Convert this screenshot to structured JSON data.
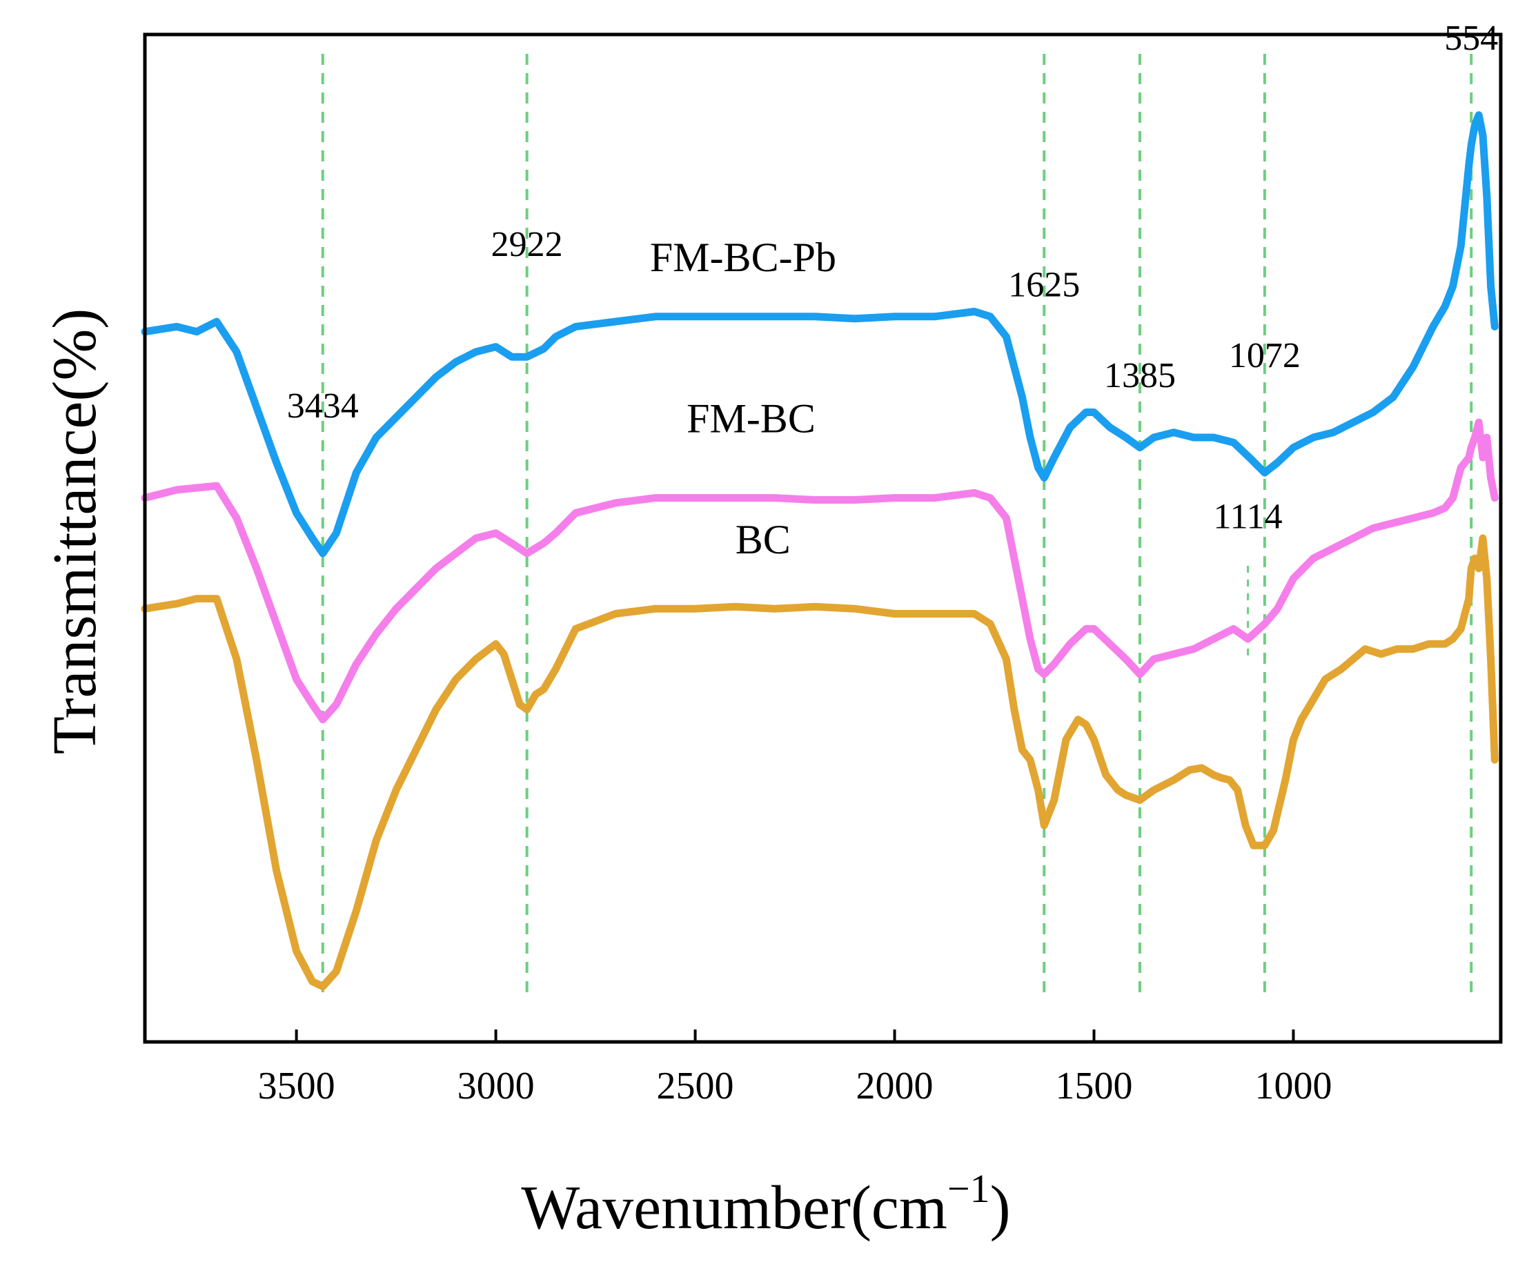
{
  "chart_data": {
    "type": "line",
    "title": "",
    "xlabel": "Wavenumber(cm",
    "xlabel_sup": "−1",
    "xlabel_close": ")",
    "ylabel": "Transmittance(%)",
    "xlim": [
      3880,
      480
    ],
    "ylim": [
      0,
      1
    ],
    "x_reversed": true,
    "x_ticks": [
      3500,
      3000,
      2500,
      2000,
      1500,
      1000
    ],
    "y_ticks": [],
    "grid": false,
    "colors": {
      "FM-BC-Pb": "#1a9ef0",
      "FM-BC": "#f57fea",
      "BC": "#e2a531",
      "guide": "#6ccf7f"
    },
    "guide_lines": [
      3434,
      2922,
      1625,
      1385,
      1072,
      554
    ],
    "guide_line_1114": 1114,
    "peak_labels": [
      {
        "text": "3434",
        "x": 3434,
        "y": 0.62
      },
      {
        "text": "2922",
        "x": 2922,
        "y": 0.78
      },
      {
        "text": "1625",
        "x": 1625,
        "y": 0.74
      },
      {
        "text": "1385",
        "x": 1385,
        "y": 0.65
      },
      {
        "text": "1072",
        "x": 1072,
        "y": 0.67
      },
      {
        "text": "1114",
        "x": 1114,
        "y": 0.51
      },
      {
        "text": "554",
        "x": 554,
        "y": 0.985
      }
    ],
    "series_labels": [
      {
        "text": "FM-BC-Pb",
        "x": 2380,
        "y": 0.765
      },
      {
        "text": "FM-BC",
        "x": 2360,
        "y": 0.605
      },
      {
        "text": "BC",
        "x": 2330,
        "y": 0.485
      }
    ],
    "series": [
      {
        "name": "FM-BC-Pb",
        "x": [
          3880,
          3800,
          3750,
          3700,
          3650,
          3600,
          3550,
          3500,
          3460,
          3434,
          3400,
          3350,
          3300,
          3250,
          3200,
          3150,
          3100,
          3050,
          3000,
          2960,
          2922,
          2880,
          2850,
          2800,
          2700,
          2600,
          2500,
          2400,
          2300,
          2200,
          2100,
          2000,
          1900,
          1800,
          1760,
          1720,
          1700,
          1680,
          1660,
          1640,
          1625,
          1600,
          1560,
          1520,
          1500,
          1460,
          1420,
          1385,
          1350,
          1300,
          1250,
          1200,
          1150,
          1110,
          1072,
          1040,
          1000,
          950,
          900,
          850,
          800,
          750,
          700,
          650,
          620,
          600,
          580,
          570,
          560,
          554,
          545,
          535,
          525,
          515,
          505,
          495
        ],
        "y": [
          0.705,
          0.71,
          0.705,
          0.715,
          0.685,
          0.63,
          0.575,
          0.525,
          0.5,
          0.485,
          0.505,
          0.565,
          0.6,
          0.62,
          0.64,
          0.66,
          0.675,
          0.685,
          0.69,
          0.68,
          0.68,
          0.688,
          0.7,
          0.71,
          0.715,
          0.72,
          0.72,
          0.72,
          0.72,
          0.72,
          0.718,
          0.72,
          0.72,
          0.725,
          0.72,
          0.7,
          0.67,
          0.64,
          0.6,
          0.57,
          0.56,
          0.58,
          0.61,
          0.625,
          0.625,
          0.61,
          0.6,
          0.59,
          0.6,
          0.605,
          0.6,
          0.6,
          0.595,
          0.58,
          0.565,
          0.575,
          0.59,
          0.6,
          0.605,
          0.615,
          0.625,
          0.64,
          0.67,
          0.71,
          0.73,
          0.75,
          0.79,
          0.83,
          0.87,
          0.89,
          0.91,
          0.92,
          0.9,
          0.84,
          0.75,
          0.71
        ]
      },
      {
        "name": "FM-BC",
        "x": [
          3880,
          3800,
          3750,
          3700,
          3650,
          3600,
          3550,
          3500,
          3460,
          3434,
          3400,
          3350,
          3300,
          3250,
          3200,
          3150,
          3100,
          3050,
          3000,
          2960,
          2922,
          2880,
          2850,
          2800,
          2700,
          2600,
          2500,
          2400,
          2300,
          2200,
          2100,
          2000,
          1900,
          1800,
          1760,
          1720,
          1700,
          1680,
          1660,
          1640,
          1625,
          1600,
          1560,
          1520,
          1500,
          1460,
          1420,
          1385,
          1350,
          1300,
          1250,
          1200,
          1150,
          1114,
          1100,
          1072,
          1040,
          1000,
          950,
          900,
          850,
          800,
          750,
          700,
          650,
          620,
          600,
          580,
          560,
          554,
          545,
          535,
          525,
          515,
          505,
          495
        ],
        "y": [
          0.54,
          0.548,
          0.55,
          0.552,
          0.52,
          0.47,
          0.415,
          0.36,
          0.335,
          0.32,
          0.335,
          0.375,
          0.405,
          0.43,
          0.45,
          0.47,
          0.485,
          0.5,
          0.505,
          0.495,
          0.485,
          0.495,
          0.505,
          0.525,
          0.535,
          0.54,
          0.54,
          0.54,
          0.54,
          0.538,
          0.538,
          0.54,
          0.54,
          0.545,
          0.54,
          0.52,
          0.48,
          0.44,
          0.4,
          0.37,
          0.365,
          0.375,
          0.395,
          0.41,
          0.41,
          0.395,
          0.38,
          0.365,
          0.38,
          0.385,
          0.39,
          0.4,
          0.41,
          0.4,
          0.405,
          0.415,
          0.43,
          0.46,
          0.48,
          0.49,
          0.5,
          0.51,
          0.515,
          0.52,
          0.525,
          0.53,
          0.54,
          0.57,
          0.58,
          0.59,
          0.6,
          0.615,
          0.58,
          0.6,
          0.56,
          0.54
        ]
      },
      {
        "name": "BC",
        "x": [
          3880,
          3800,
          3750,
          3700,
          3650,
          3600,
          3550,
          3500,
          3460,
          3434,
          3400,
          3350,
          3300,
          3250,
          3200,
          3150,
          3100,
          3050,
          3000,
          2980,
          2960,
          2940,
          2922,
          2900,
          2880,
          2850,
          2800,
          2700,
          2600,
          2500,
          2400,
          2300,
          2200,
          2100,
          2000,
          1900,
          1800,
          1760,
          1720,
          1700,
          1680,
          1660,
          1640,
          1625,
          1600,
          1570,
          1540,
          1520,
          1500,
          1470,
          1440,
          1420,
          1385,
          1350,
          1300,
          1260,
          1230,
          1200,
          1180,
          1160,
          1140,
          1120,
          1100,
          1072,
          1050,
          1020,
          1000,
          980,
          950,
          920,
          880,
          850,
          820,
          780,
          740,
          700,
          660,
          620,
          600,
          580,
          560,
          554,
          545,
          535,
          525,
          515,
          505,
          495
        ],
        "y": [
          0.43,
          0.435,
          0.44,
          0.44,
          0.38,
          0.28,
          0.17,
          0.09,
          0.06,
          0.055,
          0.07,
          0.13,
          0.2,
          0.25,
          0.29,
          0.33,
          0.36,
          0.38,
          0.395,
          0.385,
          0.36,
          0.335,
          0.33,
          0.345,
          0.35,
          0.37,
          0.41,
          0.425,
          0.43,
          0.43,
          0.432,
          0.43,
          0.432,
          0.43,
          0.425,
          0.425,
          0.425,
          0.415,
          0.38,
          0.33,
          0.29,
          0.28,
          0.25,
          0.215,
          0.24,
          0.3,
          0.32,
          0.315,
          0.3,
          0.265,
          0.25,
          0.245,
          0.24,
          0.25,
          0.26,
          0.27,
          0.272,
          0.265,
          0.262,
          0.26,
          0.25,
          0.215,
          0.195,
          0.195,
          0.21,
          0.26,
          0.3,
          0.32,
          0.34,
          0.36,
          0.37,
          0.38,
          0.39,
          0.385,
          0.39,
          0.39,
          0.395,
          0.395,
          0.4,
          0.41,
          0.44,
          0.47,
          0.48,
          0.47,
          0.5,
          0.46,
          0.38,
          0.28
        ]
      }
    ]
  }
}
